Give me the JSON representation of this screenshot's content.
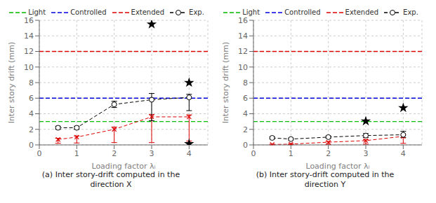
{
  "chart_data": [
    {
      "type": "line",
      "title": "(a) Inter story-drift computed in the\ndirection X",
      "x_label": "Loading factor λᵢ",
      "y_label": "Inter story drift (mm)",
      "xlim": [
        0,
        4.5
      ],
      "ylim": [
        0,
        16
      ],
      "xticks": [
        0,
        1,
        2,
        3,
        4
      ],
      "yticks": [
        0,
        2,
        4,
        6,
        8,
        10,
        12,
        14,
        16
      ],
      "grid": true,
      "legend": "top",
      "series": [
        {
          "name": "Light",
          "type": "hline",
          "color": "#00BB00",
          "line_style": "dashed",
          "y": 3.0
        },
        {
          "name": "Controlled",
          "type": "hline",
          "color": "#0000DD",
          "line_style": "dashed",
          "y": 6.0
        },
        {
          "name": "Extended",
          "type": "hline",
          "color": "#DD0000",
          "line_style": "dashed",
          "y": 12.0
        },
        {
          "type": "line",
          "color": "#DD0000",
          "line_style": "dashed",
          "marker": "x",
          "x": [
            0.5,
            1,
            2,
            3,
            4
          ],
          "values": [
            0.7,
            1.0,
            2.0,
            3.6,
            3.6
          ],
          "error_low": [
            0.5,
            0.75,
            1.7,
            3.3,
            3.1
          ],
          "error_high": [
            0.15,
            0.15,
            0.3,
            0.3,
            0.25
          ]
        },
        {
          "name": "Exp.",
          "type": "line",
          "color": "#000000",
          "line_style": "dashed",
          "marker": "circle",
          "x": [
            0.5,
            1,
            2,
            3,
            4
          ],
          "values": [
            2.2,
            2.2,
            5.2,
            5.8,
            6.1
          ],
          "error_low": [
            0.2,
            0.2,
            0.4,
            2.7,
            1.7
          ],
          "error_high": [
            0.2,
            0.2,
            0.4,
            0.8,
            0.4
          ]
        },
        {
          "type": "scatter",
          "color": "#000000",
          "marker": "star",
          "x": [
            3,
            4,
            4
          ],
          "values": [
            15.5,
            8.0,
            0.15
          ]
        }
      ]
    },
    {
      "type": "line",
      "title": "(b) Inter story-drift computed in the\ndirection Y",
      "x_label": "Loading factor λᵢ",
      "y_label": "Inter story drift (mm)",
      "xlim": [
        0,
        4.5
      ],
      "ylim": [
        0,
        16
      ],
      "xticks": [
        0,
        1,
        2,
        3,
        4
      ],
      "yticks": [
        0,
        2,
        4,
        6,
        8,
        10,
        12,
        14,
        16
      ],
      "grid": true,
      "legend": "top",
      "series": [
        {
          "name": "Light",
          "type": "hline",
          "color": "#00BB00",
          "line_style": "dashed",
          "y": 3.0
        },
        {
          "name": "Controlled",
          "type": "hline",
          "color": "#0000DD",
          "line_style": "dashed",
          "y": 6.0
        },
        {
          "name": "Extended",
          "type": "hline",
          "color": "#DD0000",
          "line_style": "dashed",
          "y": 12.0
        },
        {
          "type": "line",
          "color": "#DD0000",
          "line_style": "dashed",
          "marker": "x",
          "x": [
            0.5,
            1,
            2,
            3,
            4
          ],
          "values": [
            0.05,
            0.1,
            0.35,
            0.55,
            1.1
          ],
          "error_low": [
            0.04,
            0.08,
            0.28,
            0.45,
            0.9
          ],
          "error_high": [
            0.04,
            0.05,
            0.08,
            0.1,
            0.18
          ]
        },
        {
          "name": "Exp.",
          "type": "line",
          "color": "#000000",
          "line_style": "dashed",
          "marker": "circle",
          "x": [
            0.5,
            1,
            2,
            3,
            4
          ],
          "values": [
            0.9,
            0.75,
            1.0,
            1.2,
            1.3
          ],
          "error_low": [
            0.15,
            0.12,
            0.15,
            0.25,
            0.35
          ],
          "error_high": [
            0.15,
            0.12,
            0.15,
            0.25,
            0.45
          ]
        },
        {
          "type": "scatter",
          "color": "#000000",
          "marker": "star",
          "x": [
            3,
            4
          ],
          "values": [
            3.05,
            4.75
          ]
        }
      ]
    }
  ]
}
